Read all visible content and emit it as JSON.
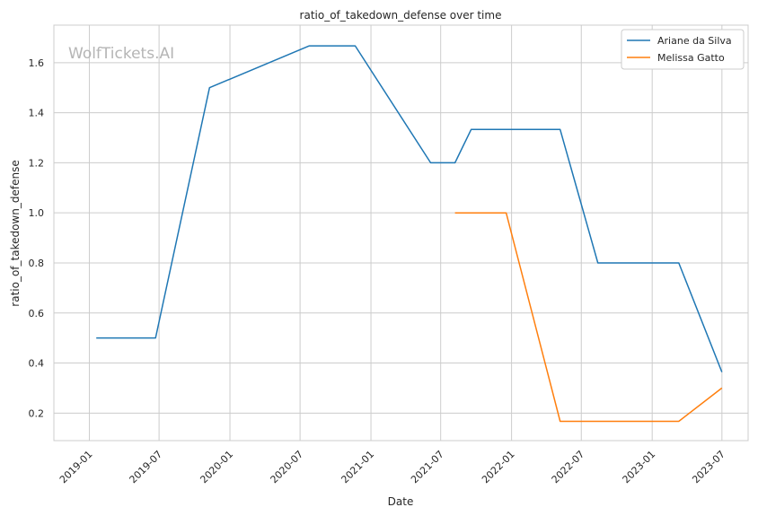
{
  "watermark": "WolfTickets.AI",
  "chart_data": {
    "type": "line",
    "title": "ratio_of_takedown_defense over time",
    "xlabel": "Date",
    "ylabel": "ratio_of_takedown_defense",
    "xlim": [
      "2018-10-01",
      "2023-09-07"
    ],
    "ylim": [
      0.09,
      1.75
    ],
    "x_ticks": [
      "2019-01-01",
      "2019-07-01",
      "2020-01-01",
      "2020-07-01",
      "2021-01-01",
      "2021-07-01",
      "2022-01-01",
      "2022-07-01",
      "2023-01-01",
      "2023-07-01"
    ],
    "x_tick_labels": [
      "2019-01",
      "2019-07",
      "2020-01",
      "2020-07",
      "2021-01",
      "2021-07",
      "2022-01",
      "2022-07",
      "2023-01",
      "2023-07"
    ],
    "y_ticks": [
      0.2,
      0.4,
      0.6,
      0.8,
      1.0,
      1.2,
      1.4,
      1.6
    ],
    "y_tick_labels": [
      "0.2",
      "0.4",
      "0.6",
      "0.8",
      "1.0",
      "1.2",
      "1.4",
      "1.6"
    ],
    "grid": true,
    "legend_position": "top-right",
    "series": [
      {
        "name": "Ariane da Silva",
        "color": "#1f77b4",
        "points": [
          {
            "x": "2019-01-19",
            "y": 0.5
          },
          {
            "x": "2019-06-22",
            "y": 0.5
          },
          {
            "x": "2019-11-09",
            "y": 1.5
          },
          {
            "x": "2020-07-25",
            "y": 1.667
          },
          {
            "x": "2020-11-21",
            "y": 1.667
          },
          {
            "x": "2021-06-05",
            "y": 1.2
          },
          {
            "x": "2021-08-07",
            "y": 1.2
          },
          {
            "x": "2021-09-18",
            "y": 1.333
          },
          {
            "x": "2022-05-07",
            "y": 1.333
          },
          {
            "x": "2022-08-13",
            "y": 0.8
          },
          {
            "x": "2023-03-11",
            "y": 0.8
          },
          {
            "x": "2023-07-01",
            "y": 0.364
          }
        ]
      },
      {
        "name": "Melissa Gatto",
        "color": "#ff7f0e",
        "points": [
          {
            "x": "2021-08-07",
            "y": 1.0
          },
          {
            "x": "2021-12-18",
            "y": 1.0
          },
          {
            "x": "2022-05-07",
            "y": 0.167
          },
          {
            "x": "2023-03-11",
            "y": 0.167
          },
          {
            "x": "2023-07-01",
            "y": 0.3
          }
        ]
      }
    ]
  }
}
